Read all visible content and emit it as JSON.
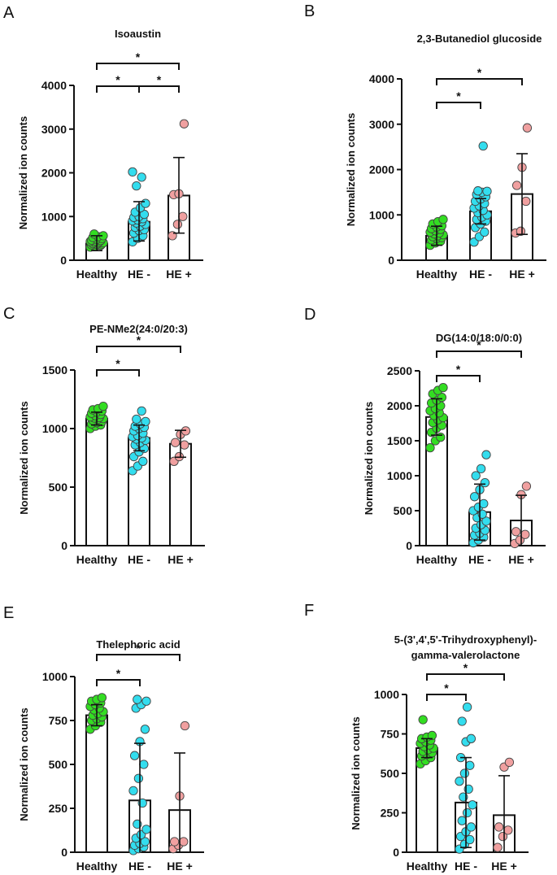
{
  "figure": {
    "panel_labels": [
      "A",
      "B",
      "C",
      "D",
      "E",
      "F"
    ]
  },
  "colors": {
    "Healthy": "#33dd22",
    "HE -": "#33ddee",
    "HE +": "#f0a0a0",
    "axis": "#111111"
  },
  "chart_data": [
    {
      "panel": "A",
      "type": "bar",
      "title": [
        "Isoaustin"
      ],
      "ylabel": "Normalized ion counts",
      "categories": [
        "Healthy",
        "HE -",
        "HE +"
      ],
      "ylim": [
        0,
        4000
      ],
      "yticks": [
        0,
        1000,
        2000,
        3000,
        4000
      ],
      "means": [
        380,
        880,
        1480
      ],
      "err_high": [
        560,
        1340,
        2350
      ],
      "err_low": [
        220,
        440,
        620
      ],
      "points": [
        [
          300,
          320,
          340,
          350,
          360,
          370,
          380,
          390,
          400,
          410,
          420,
          430,
          440,
          450,
          460,
          480,
          500,
          520,
          540,
          560,
          600
        ],
        [
          420,
          500,
          560,
          620,
          680,
          700,
          750,
          780,
          820,
          850,
          880,
          900,
          920,
          950,
          980,
          1000,
          1050,
          1100,
          1200,
          1300,
          1700,
          1900,
          2020
        ],
        [
          560,
          820,
          1000,
          1500,
          1520,
          3120
        ]
      ],
      "significance": [
        {
          "from": 0,
          "to": 1,
          "label": "*"
        },
        {
          "from": 1,
          "to": 2,
          "label": "*"
        },
        {
          "from": 0,
          "to": 2,
          "label": "*"
        }
      ]
    },
    {
      "panel": "B",
      "type": "bar",
      "title": [
        "2,3-Butanediol glucoside"
      ],
      "ylabel": "Normalized ion counts",
      "categories": [
        "Healthy",
        "HE -",
        "HE +"
      ],
      "ylim": [
        0,
        4000
      ],
      "yticks": [
        0,
        1000,
        2000,
        3000,
        4000
      ],
      "means": [
        540,
        1080,
        1460
      ],
      "err_high": [
        750,
        1360,
        2350
      ],
      "err_low": [
        330,
        800,
        570
      ],
      "points": [
        [
          330,
          380,
          420,
          450,
          480,
          500,
          520,
          540,
          560,
          580,
          600,
          620,
          650,
          680,
          700,
          730,
          760,
          800,
          850,
          900
        ],
        [
          400,
          520,
          620,
          720,
          800,
          860,
          900,
          950,
          1000,
          1050,
          1100,
          1150,
          1200,
          1250,
          1300,
          1350,
          1400,
          1450,
          1500,
          1520,
          1530,
          2520
        ],
        [
          600,
          640,
          1300,
          1650,
          2050,
          2920
        ]
      ],
      "significance": [
        {
          "from": 0,
          "to": 1,
          "label": "*"
        },
        {
          "from": 0,
          "to": 2,
          "label": "*"
        }
      ]
    },
    {
      "panel": "C",
      "type": "bar",
      "title": [
        "PE-NMe2(24:0/20:3)"
      ],
      "ylabel": "Normalized ion counts",
      "categories": [
        "Healthy",
        "HE -",
        "HE +"
      ],
      "ylim": [
        0,
        1500
      ],
      "yticks": [
        0,
        500,
        1000,
        1500
      ],
      "means": [
        1085,
        920,
        870
      ],
      "err_high": [
        1140,
        1030,
        985
      ],
      "err_low": [
        1030,
        810,
        755
      ],
      "points": [
        [
          1000,
          1020,
          1030,
          1040,
          1050,
          1060,
          1070,
          1080,
          1085,
          1090,
          1095,
          1100,
          1110,
          1120,
          1130,
          1140,
          1150,
          1160,
          1170,
          1190
        ],
        [
          640,
          680,
          720,
          760,
          800,
          830,
          860,
          880,
          900,
          910,
          920,
          930,
          940,
          960,
          980,
          1000,
          1010,
          1020,
          1040,
          1060,
          1080,
          1150
        ],
        [
          720,
          760,
          860,
          880,
          950,
          980
        ]
      ],
      "significance": [
        {
          "from": 0,
          "to": 1,
          "label": "*"
        },
        {
          "from": 0,
          "to": 2,
          "label": "*"
        }
      ]
    },
    {
      "panel": "D",
      "type": "bar",
      "title": [
        "DG(14:0/18:0/0:0)"
      ],
      "ylabel": "Normalized ion counts",
      "categories": [
        "Healthy",
        "HE -",
        "HE +"
      ],
      "ylim": [
        0,
        2500
      ],
      "yticks": [
        0,
        500,
        1000,
        1500,
        2000,
        2500
      ],
      "means": [
        1840,
        480,
        360
      ],
      "err_high": [
        2100,
        880,
        720
      ],
      "err_low": [
        1580,
        80,
        0
      ],
      "points": [
        [
          1400,
          1500,
          1550,
          1620,
          1680,
          1720,
          1760,
          1800,
          1830,
          1860,
          1900,
          1930,
          1960,
          2000,
          2040,
          2080,
          2120,
          2170,
          2220,
          2260
        ],
        [
          40,
          80,
          120,
          150,
          180,
          220,
          250,
          300,
          350,
          400,
          450,
          500,
          550,
          600,
          700,
          800,
          900,
          1000,
          1100,
          1300
        ],
        [
          30,
          80,
          160,
          200,
          730,
          850
        ]
      ],
      "significance": [
        {
          "from": 0,
          "to": 1,
          "label": "*"
        },
        {
          "from": 0,
          "to": 2,
          "label": "*"
        }
      ]
    },
    {
      "panel": "E",
      "type": "bar",
      "title": [
        "Thelephoric acid"
      ],
      "ylabel": "Normalized ion counts",
      "categories": [
        "Healthy",
        "HE -",
        "HE +"
      ],
      "ylim": [
        0,
        1000
      ],
      "yticks": [
        0,
        250,
        500,
        750,
        1000
      ],
      "means": [
        780,
        295,
        240
      ],
      "err_high": [
        840,
        620,
        565
      ],
      "err_low": [
        720,
        0,
        0
      ],
      "points": [
        [
          700,
          720,
          740,
          750,
          760,
          770,
          780,
          790,
          800,
          810,
          820,
          830,
          840,
          850,
          860,
          870,
          880
        ],
        [
          10,
          20,
          30,
          40,
          50,
          60,
          80,
          100,
          130,
          160,
          280,
          350,
          420,
          500,
          550,
          630,
          700,
          820,
          840,
          860,
          870
        ],
        [
          20,
          40,
          60,
          60,
          320,
          720
        ]
      ],
      "significance": [
        {
          "from": 0,
          "to": 1,
          "label": "*"
        },
        {
          "from": 0,
          "to": 2,
          "label": "*"
        }
      ]
    },
    {
      "panel": "F",
      "type": "bar",
      "title": [
        "5-(3',4',5'-Trihydroxyphenyl)-",
        "gamma-valerolactone"
      ],
      "ylabel": "Normalized ion counts",
      "categories": [
        "Healthy",
        "HE -",
        "HE +"
      ],
      "ylim": [
        0,
        1000
      ],
      "yticks": [
        0,
        250,
        500,
        750,
        1000
      ],
      "means": [
        660,
        315,
        235
      ],
      "err_high": [
        720,
        600,
        485
      ],
      "err_low": [
        600,
        30,
        0
      ],
      "points": [
        [
          560,
          580,
          600,
          610,
          620,
          630,
          640,
          650,
          660,
          670,
          680,
          690,
          700,
          710,
          720,
          730,
          740,
          840
        ],
        [
          20,
          50,
          80,
          100,
          130,
          160,
          200,
          250,
          300,
          350,
          400,
          450,
          500,
          550,
          600,
          700,
          720,
          830,
          920
        ],
        [
          30,
          100,
          140,
          160,
          540,
          570
        ]
      ],
      "significance": [
        {
          "from": 0,
          "to": 1,
          "label": "*"
        },
        {
          "from": 0,
          "to": 2,
          "label": "*"
        }
      ]
    }
  ]
}
